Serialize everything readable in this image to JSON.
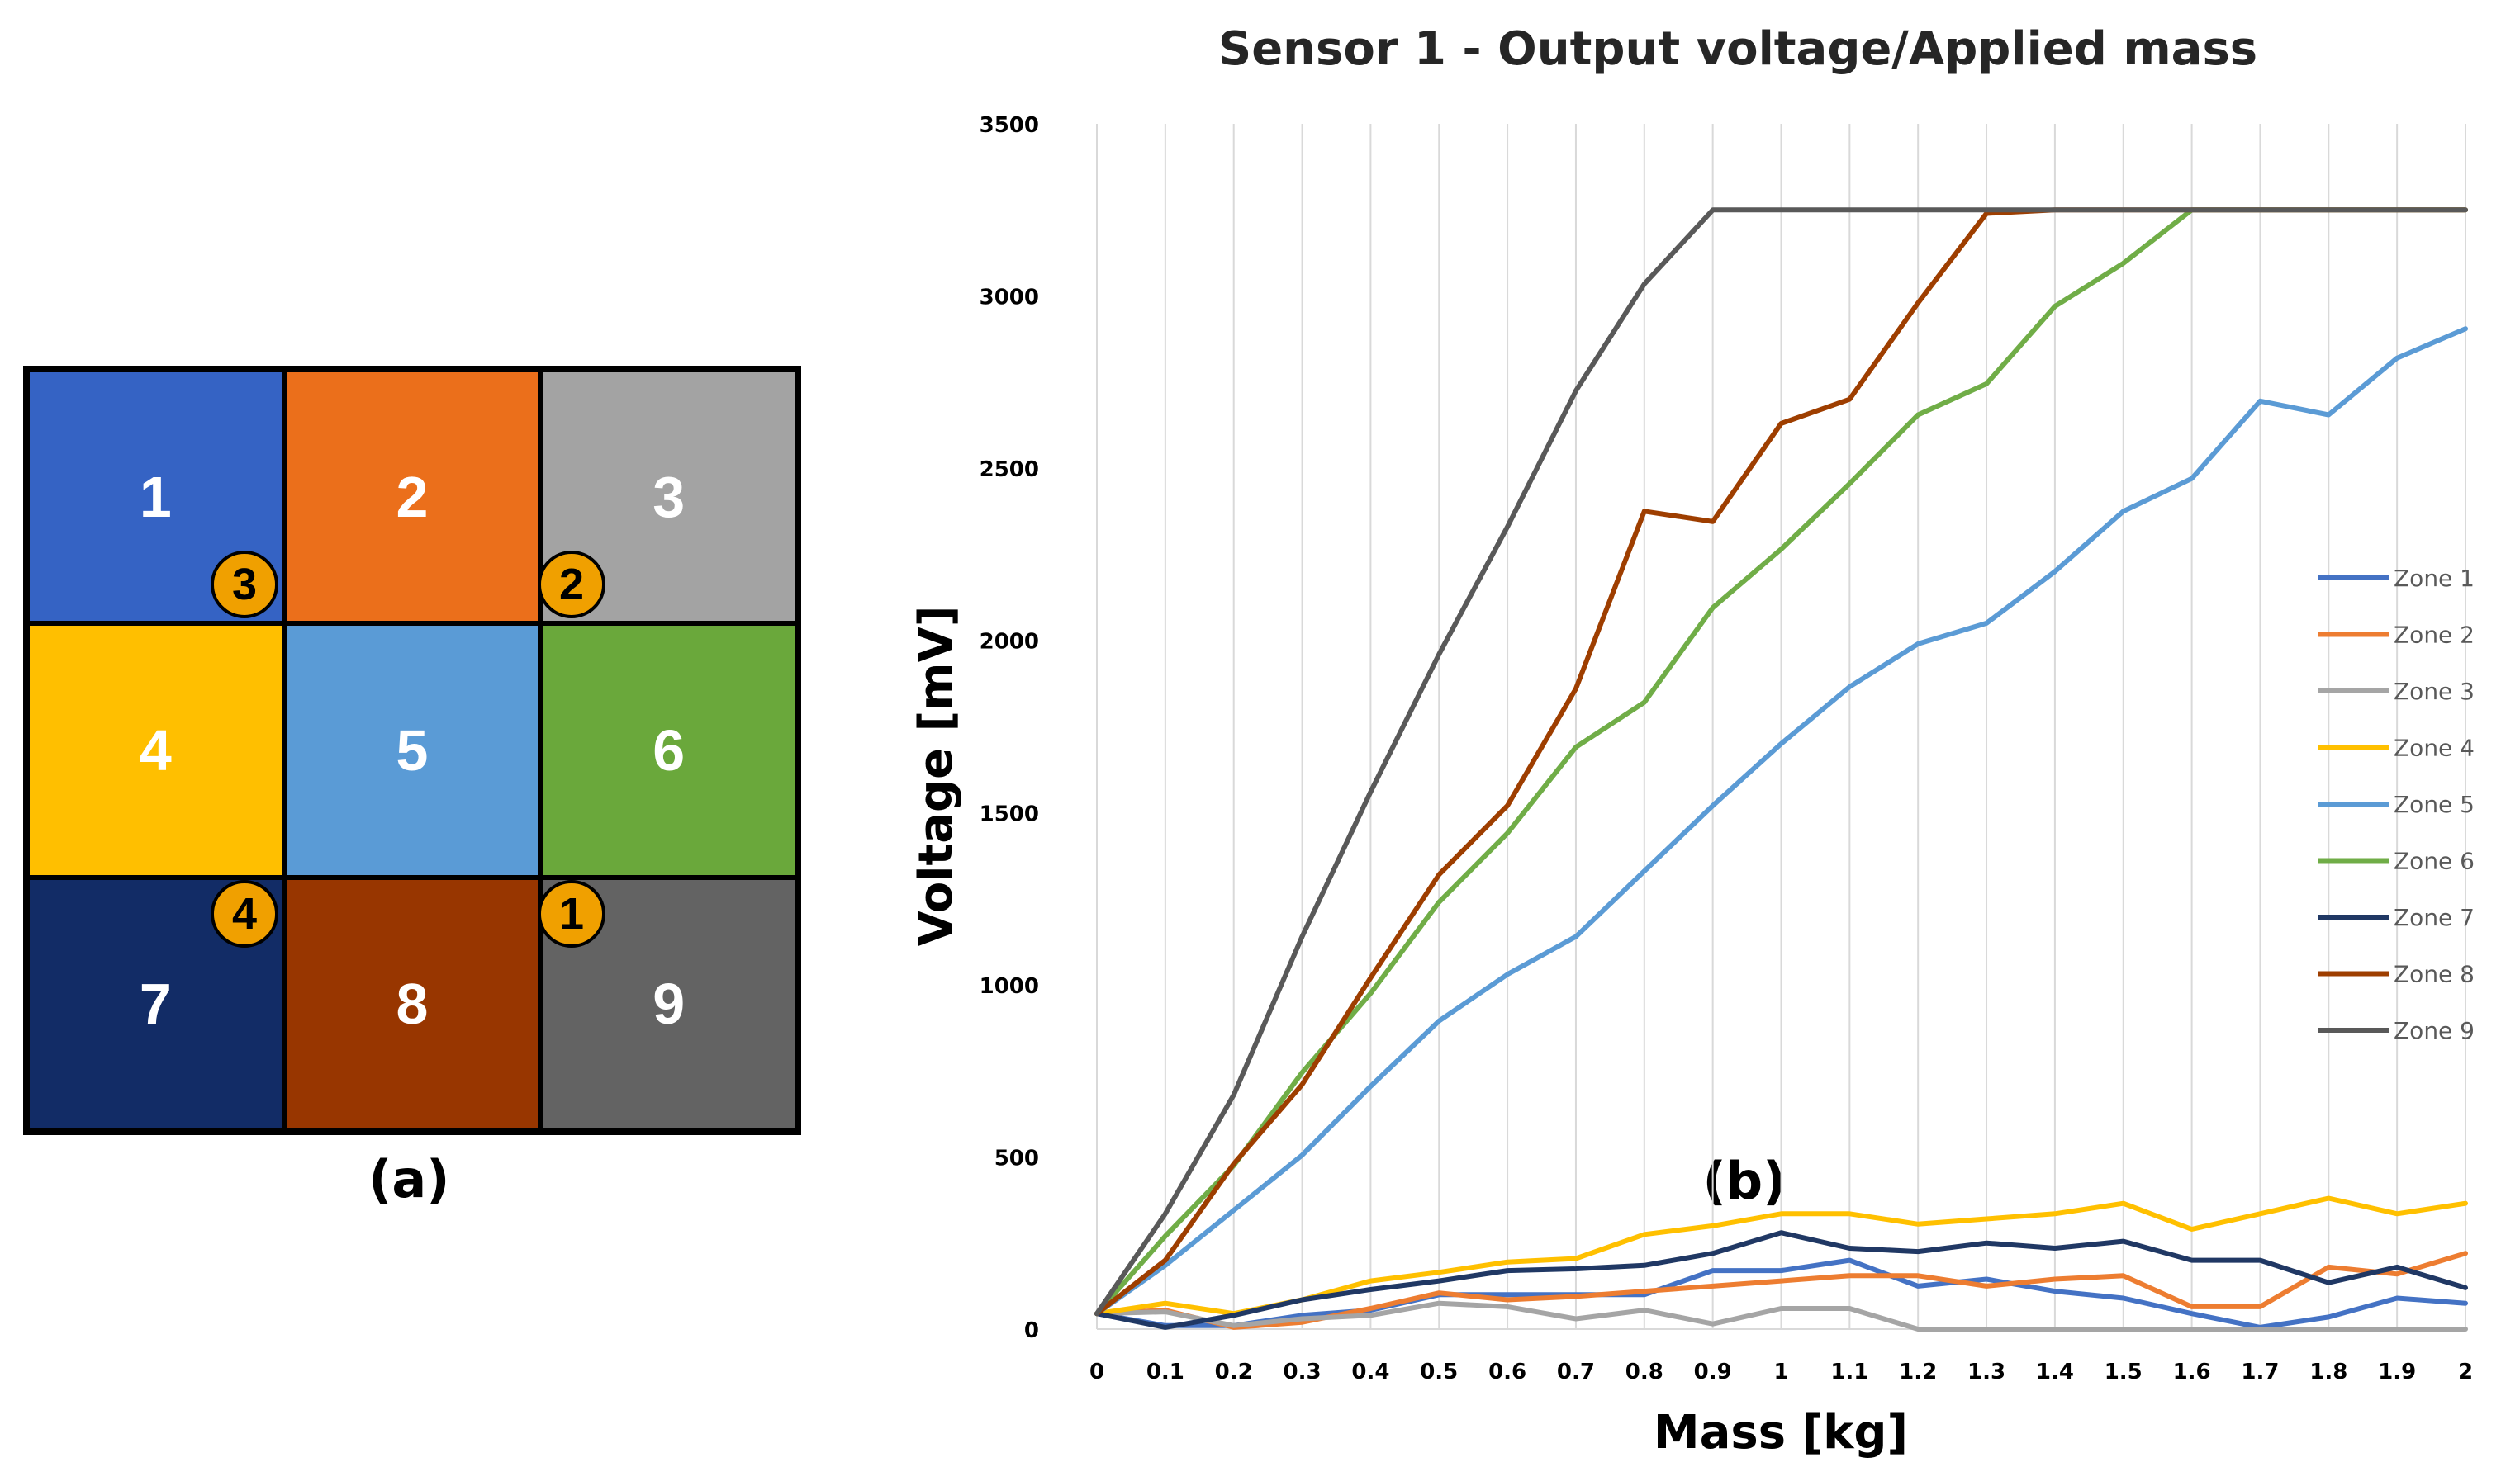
{
  "panel_a": {
    "label": "(a)",
    "cells": [
      {
        "label": "1",
        "color": "#3563c4"
      },
      {
        "label": "2",
        "color": "#eb6f1b"
      },
      {
        "label": "3",
        "color": "#a3a3a3"
      },
      {
        "label": "4",
        "color": "#ffbf00"
      },
      {
        "label": "5",
        "color": "#5a9bd6"
      },
      {
        "label": "6",
        "color": "#6aa83b"
      },
      {
        "label": "7",
        "color": "#122c66"
      },
      {
        "label": "8",
        "color": "#983600"
      },
      {
        "label": "9",
        "color": "#636363"
      }
    ],
    "markers": [
      "3",
      "2",
      "4",
      "1"
    ],
    "marker_color": "#f0a000"
  },
  "chart_data": {
    "type": "line",
    "panel_label": "(b)",
    "title": "Sensor 1 - Output voltage/Applied mass",
    "xlabel": "Mass [kg]",
    "ylabel": "Voltage [mV]",
    "ylim": [
      0,
      3500
    ],
    "yticks": [
      0,
      500,
      1000,
      1500,
      2000,
      2500,
      3000,
      3500
    ],
    "grid": "vertical",
    "legend_position": "right",
    "x": [
      0,
      0.1,
      0.2,
      0.3,
      0.4,
      0.5,
      0.6,
      0.7,
      0.8,
      0.9,
      1,
      1.1,
      1.2,
      1.3,
      1.4,
      1.5,
      1.6,
      1.7,
      1.8,
      1.9,
      2
    ],
    "series": [
      {
        "name": "Zone 1",
        "color": "#4472c4",
        "values": [
          45,
          10,
          10,
          40,
          55,
          100,
          100,
          100,
          100,
          170,
          170,
          200,
          125,
          145,
          110,
          90,
          45,
          5,
          35,
          90,
          75
        ]
      },
      {
        "name": "Zone 2",
        "color": "#ed7d31",
        "values": [
          45,
          55,
          5,
          20,
          60,
          105,
          85,
          95,
          110,
          125,
          140,
          155,
          155,
          125,
          145,
          155,
          65,
          65,
          180,
          160,
          220
        ]
      },
      {
        "name": "Zone 3",
        "color": "#a5a5a5",
        "values": [
          45,
          50,
          10,
          30,
          40,
          75,
          65,
          30,
          55,
          15,
          60,
          60,
          0,
          0,
          0,
          0,
          0,
          0,
          0,
          0,
          0
        ]
      },
      {
        "name": "Zone 4",
        "color": "#ffc000",
        "values": [
          45,
          75,
          45,
          85,
          140,
          165,
          195,
          205,
          275,
          300,
          335,
          335,
          305,
          320,
          335,
          365,
          290,
          335,
          380,
          335,
          365
        ]
      },
      {
        "name": "Zone 5",
        "color": "#5b9bd5",
        "values": [
          45,
          185,
          345,
          505,
          705,
          895,
          1030,
          1140,
          1330,
          1520,
          1700,
          1865,
          1990,
          2050,
          2200,
          2375,
          2470,
          2695,
          2655,
          2820,
          2905
        ]
      },
      {
        "name": "Zone 6",
        "color": "#70ad47",
        "values": [
          45,
          270,
          475,
          745,
          975,
          1240,
          1440,
          1690,
          1820,
          2095,
          2265,
          2455,
          2655,
          2745,
          2970,
          3095,
          3250,
          3250,
          3250,
          3250,
          3250
        ]
      },
      {
        "name": "Zone 7",
        "color": "#203864",
        "values": [
          45,
          5,
          40,
          85,
          115,
          140,
          170,
          175,
          185,
          220,
          280,
          235,
          225,
          250,
          235,
          255,
          200,
          200,
          135,
          180,
          120
        ]
      },
      {
        "name": "Zone 8",
        "color": "#9e3e00",
        "values": [
          45,
          200,
          480,
          710,
          1020,
          1320,
          1520,
          1860,
          2375,
          2345,
          2630,
          2700,
          2980,
          3240,
          3250,
          3250,
          3250,
          3250,
          3250,
          3250,
          3250
        ]
      },
      {
        "name": "Zone 9",
        "color": "#595959",
        "values": [
          45,
          335,
          680,
          1140,
          1560,
          1960,
          2330,
          2725,
          3035,
          3250,
          3250,
          3250,
          3250,
          3250,
          3250,
          3250,
          3250,
          3250,
          3250,
          3250,
          3250
        ]
      }
    ]
  }
}
